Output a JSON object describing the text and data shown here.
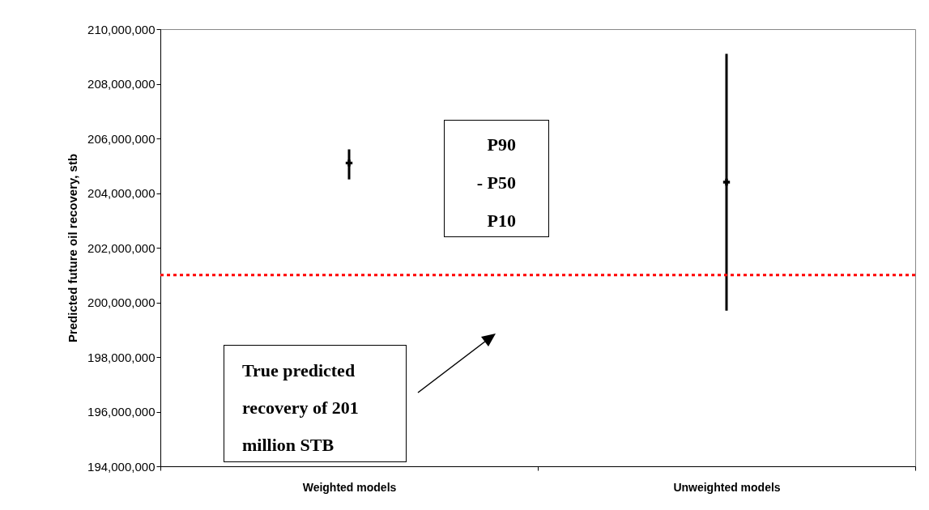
{
  "chart_data": {
    "type": "scatter",
    "ylabel": "Predicted future oil recovery, stb",
    "categories": [
      "Weighted models",
      "Unweighted models"
    ],
    "series": [
      {
        "color": "#000000",
        "values": [
          205100000,
          204400000
        ],
        "errors": [
          [
            204500000,
            205600000
          ],
          [
            199700000,
            209100000
          ]
        ]
      }
    ],
    "ylim": [
      194000000,
      210000000
    ],
    "yticks": [
      {
        "value": 194000000,
        "label": "194,000,000"
      },
      {
        "value": 196000000,
        "label": "196,000,000"
      },
      {
        "value": 198000000,
        "label": "198,000,000"
      },
      {
        "value": 200000000,
        "label": "200,000,000"
      },
      {
        "value": 202000000,
        "label": "202,000,000"
      },
      {
        "value": 204000000,
        "label": "204,000,000"
      },
      {
        "value": 206000000,
        "label": "206,000,000"
      },
      {
        "value": 208000000,
        "label": "208,000,000"
      },
      {
        "value": 210000000,
        "label": "210,000,000"
      }
    ],
    "ref_lines": [
      {
        "axis": "y",
        "value": 201000000,
        "color": "#ff0000",
        "line_style": "dotted"
      }
    ],
    "annotations": [
      "P90",
      "- P50",
      "P10",
      "True predicted recovery of 201 million STB"
    ],
    "grid": false,
    "marker": "cross"
  }
}
